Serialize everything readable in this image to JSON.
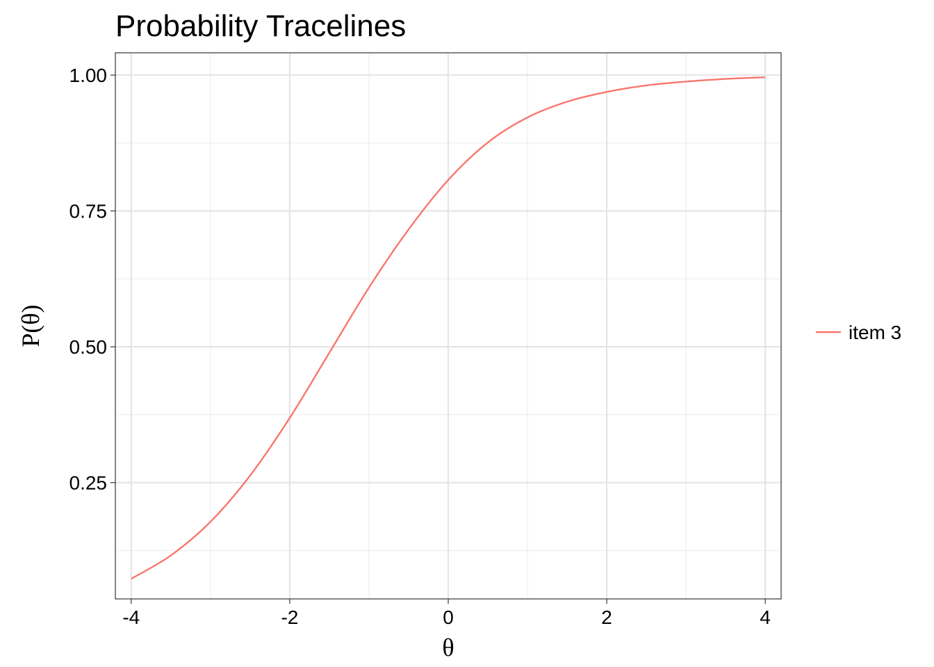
{
  "chart_data": {
    "type": "line",
    "title": "Probability Tracelines",
    "xlabel": "θ",
    "ylabel": "P(θ)",
    "xlim": [
      -4.2,
      4.2
    ],
    "ylim": [
      0.036,
      1.041
    ],
    "x_ticks": [
      -4,
      -2,
      0,
      2,
      4
    ],
    "x_tick_labels": [
      "-4",
      "-2",
      "0",
      "2",
      "4"
    ],
    "y_ticks": [
      0.25,
      0.5,
      0.75,
      1.0
    ],
    "y_tick_labels": [
      "0.25",
      "0.50",
      "0.75",
      "1.00"
    ],
    "grid": true,
    "legend_position": "right",
    "series": [
      {
        "name": "item 3",
        "color": "#F8766D",
        "x": [
          -4,
          -3.5,
          -3,
          -2.5,
          -2,
          -1.5,
          -1,
          -0.5,
          0,
          0.5,
          1,
          1.5,
          2,
          2.5,
          3,
          3.5,
          4
        ],
        "y": [
          0.073,
          0.116,
          0.178,
          0.263,
          0.369,
          0.489,
          0.609,
          0.716,
          0.807,
          0.876,
          0.922,
          0.951,
          0.969,
          0.981,
          0.988,
          0.993,
          0.996
        ]
      }
    ]
  }
}
